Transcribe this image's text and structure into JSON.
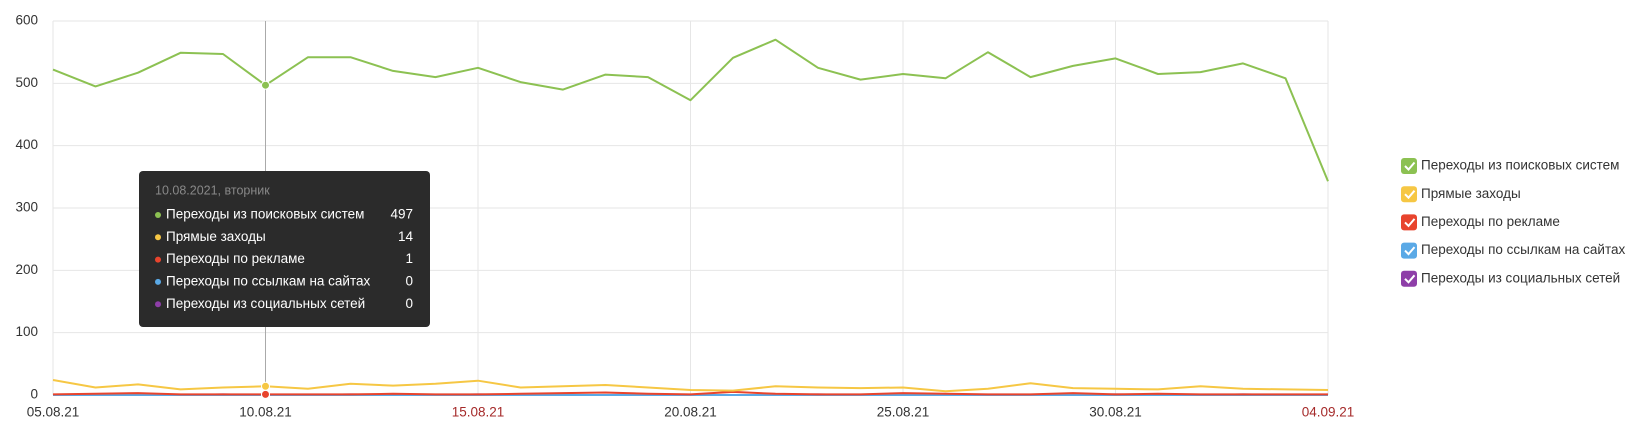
{
  "chart_data": {
    "type": "line",
    "categories": [
      "05.08.21",
      null,
      null,
      null,
      null,
      "10.08.21",
      null,
      null,
      null,
      null,
      "15.08.21",
      null,
      null,
      null,
      null,
      "20.08.21",
      null,
      null,
      null,
      null,
      "25.08.21",
      null,
      null,
      null,
      null,
      "30.08.21",
      null,
      null,
      null,
      null,
      "04.09.21"
    ],
    "label_colors": [
      "#333333",
      null,
      null,
      null,
      null,
      "#333333",
      null,
      null,
      null,
      null,
      "#a52a2a",
      null,
      null,
      null,
      null,
      "#333333",
      null,
      null,
      null,
      null,
      "#333333",
      null,
      null,
      null,
      null,
      "#333333",
      null,
      null,
      null,
      null,
      "#a52a2a"
    ],
    "series": [
      {
        "name": "Переходы из поисковых систем",
        "color": "#8cc152",
        "values": [
          522,
          495,
          517,
          549,
          547,
          497,
          542,
          542,
          520,
          510,
          525,
          502,
          490,
          514,
          510,
          473,
          541,
          570,
          525,
          506,
          515,
          508,
          550,
          510,
          528,
          540,
          515,
          518,
          532,
          508,
          343
        ]
      },
      {
        "name": "Прямые заходы",
        "color": "#f6c744",
        "values": [
          24,
          12,
          17,
          9,
          12,
          14,
          10,
          18,
          15,
          18,
          23,
          12,
          14,
          16,
          12,
          8,
          7,
          14,
          12,
          11,
          12,
          6,
          10,
          19,
          11,
          10,
          9,
          14,
          10,
          9,
          8
        ]
      },
      {
        "name": "Переходы по рекламе",
        "color": "#e8442d",
        "values": [
          1,
          2,
          3,
          1,
          1,
          1,
          1,
          1,
          2,
          1,
          1,
          2,
          3,
          4,
          2,
          1,
          5,
          2,
          1,
          1,
          3,
          2,
          1,
          1,
          3,
          1,
          2,
          1,
          1,
          1,
          1
        ]
      },
      {
        "name": "Переходы по ссылкам на сайтах",
        "color": "#5aa9e6",
        "values": [
          0,
          0,
          0,
          0,
          0,
          0,
          0,
          0,
          0,
          0,
          0,
          0,
          0,
          0,
          0,
          0,
          0,
          0,
          0,
          0,
          0,
          0,
          0,
          0,
          0,
          0,
          0,
          0,
          0,
          0,
          0
        ]
      },
      {
        "name": "Переходы из социальных сетей",
        "color": "#8e3ea8",
        "values": [
          0,
          1,
          0,
          0,
          1,
          0,
          0,
          1,
          0,
          0,
          1,
          0,
          0,
          0,
          1,
          0,
          0,
          0,
          1,
          0,
          0,
          1,
          0,
          0,
          0,
          1,
          0,
          0,
          1,
          0,
          0
        ]
      }
    ],
    "ylim": [
      0,
      600
    ],
    "yticks": [
      0,
      100,
      200,
      300,
      400,
      500,
      600
    ],
    "grid": true,
    "legend": "right",
    "tooltip": {
      "title": "10.08.2021, вторник",
      "index": 5
    }
  }
}
